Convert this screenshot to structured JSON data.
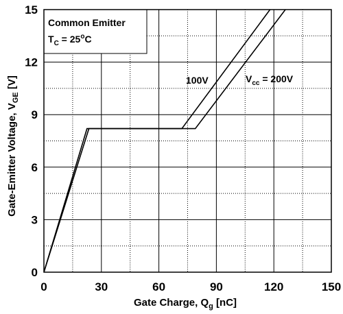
{
  "chart_data": {
    "type": "line",
    "xlabel_main": "Gate Charge, Q",
    "xlabel_sub": "g",
    "xlabel_unit": " [nC]",
    "ylabel_main": "Gate-Emitter Voltage, V",
    "ylabel_sub": "GE",
    "ylabel_unit": " [V]",
    "xlim": [
      0,
      150
    ],
    "ylim": [
      0,
      15
    ],
    "xticks": [
      0,
      30,
      60,
      90,
      120,
      150
    ],
    "yticks": [
      0,
      3,
      6,
      9,
      12,
      15
    ],
    "xtick_labels": [
      "0",
      "30",
      "60",
      "90",
      "120",
      "150"
    ],
    "ytick_labels": [
      "0",
      "3",
      "6",
      "9",
      "12",
      "15"
    ],
    "grid": true,
    "legend_box": {
      "line1": "Common Emitter",
      "line2_main": "T",
      "line2_sub": "C",
      "line2_eq": " = 25",
      "line2_sup": "o",
      "line2_unit": "C"
    },
    "series": [
      {
        "name": "100V",
        "x": [
          0,
          22.5,
          72,
          118
        ],
        "y": [
          0,
          8.2,
          8.2,
          15
        ]
      },
      {
        "name_main": "V",
        "name_sub": "cc",
        "name_rest": " = 200V",
        "x": [
          0,
          23.5,
          79,
          126
        ],
        "y": [
          0,
          8.2,
          8.2,
          15
        ]
      }
    ]
  }
}
